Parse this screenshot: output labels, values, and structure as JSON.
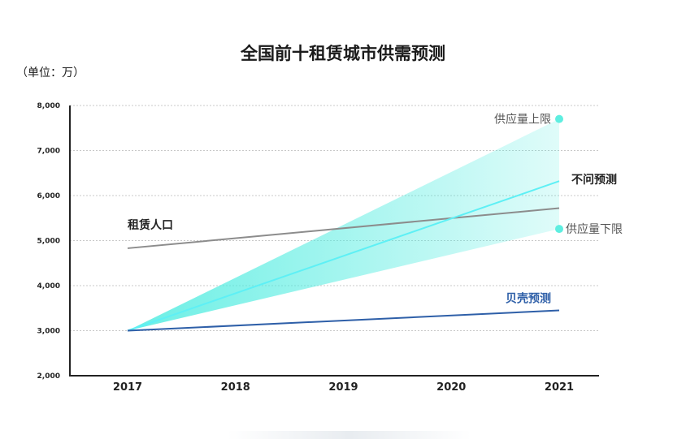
{
  "chart_data": {
    "type": "line",
    "title": "全国前十租赁城市供需预测",
    "unit_label": "（单位：万）",
    "x": [
      "2017",
      "2018",
      "2019",
      "2020",
      "2021"
    ],
    "ylim": [
      2000,
      8000
    ],
    "y_ticks": [
      "2,000",
      "3,000",
      "4,000",
      "5,000",
      "6,000",
      "7,000",
      "8,000"
    ],
    "y_tick_values": [
      2000,
      3000,
      4000,
      5000,
      6000,
      7000,
      8000
    ],
    "grid": true,
    "series": [
      {
        "name": "租赁人口",
        "color": "#8c8c8c",
        "values": [
          4830,
          null,
          null,
          null,
          5720
        ]
      },
      {
        "name": "不问预测",
        "color": "#5ef0f5",
        "values": [
          3000,
          null,
          null,
          null,
          6320
        ]
      },
      {
        "name": "贝壳预测",
        "color": "#2e5fa8",
        "values": [
          3000,
          null,
          null,
          null,
          3450
        ]
      }
    ],
    "band": {
      "color": "#5eeee0",
      "lower": [
        3000,
        null,
        null,
        null,
        5260
      ],
      "upper": [
        3000,
        null,
        null,
        null,
        7700
      ]
    },
    "markers": [
      {
        "label": "供应量上限",
        "x": "2021",
        "y": 7700,
        "color": "#5eeee0"
      },
      {
        "label": "供应量下限",
        "x": "2021",
        "y": 5260,
        "color": "#5eeee0"
      }
    ]
  }
}
